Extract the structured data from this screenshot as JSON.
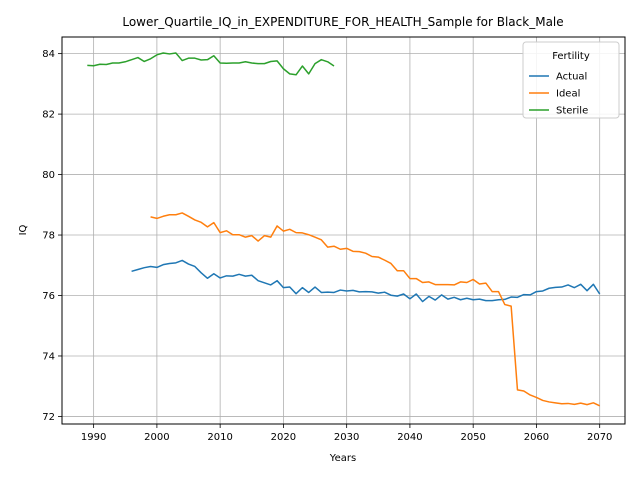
{
  "chart_data": {
    "type": "line",
    "title": "Lower_Quartile_IQ_in_EXPENDITURE_FOR_HEALTH_Sample for Black_Male",
    "xlabel": "Years",
    "ylabel": "IQ",
    "xlim": [
      1985,
      2074
    ],
    "ylim": [
      71.75,
      84.55
    ],
    "x_ticks": [
      1990,
      2000,
      2010,
      2020,
      2030,
      2040,
      2050,
      2060,
      2070
    ],
    "y_ticks": [
      72,
      74,
      76,
      78,
      80,
      82,
      84
    ],
    "grid": true,
    "legend": {
      "title": "Fertility",
      "placement": "top-right"
    },
    "series": [
      {
        "name": "Actual",
        "color": "#1f77b4",
        "x": [
          1996,
          1997,
          1998,
          1999,
          2000,
          2001,
          2002,
          2003,
          2004,
          2005,
          2006,
          2007,
          2008,
          2009,
          2010,
          2011,
          2012,
          2013,
          2014,
          2015,
          2016,
          2017,
          2018,
          2019,
          2020,
          2021,
          2022,
          2023,
          2024,
          2025,
          2026,
          2027,
          2028,
          2029,
          2030,
          2031,
          2032,
          2033,
          2034,
          2035,
          2036,
          2037,
          2038,
          2039,
          2040,
          2041,
          2042,
          2043,
          2044,
          2045,
          2046,
          2047,
          2048,
          2049,
          2050,
          2051,
          2052,
          2053,
          2054,
          2055,
          2056,
          2057,
          2058,
          2059,
          2060,
          2061,
          2062,
          2063,
          2064,
          2065,
          2066,
          2067,
          2068,
          2069,
          2070
        ],
        "y": [
          76.8,
          76.86,
          76.92,
          76.96,
          76.93,
          77.02,
          77.06,
          77.08,
          77.16,
          77.04,
          76.96,
          76.75,
          76.57,
          76.72,
          76.58,
          76.65,
          76.64,
          76.7,
          76.64,
          76.67,
          76.49,
          76.42,
          76.35,
          76.49,
          76.26,
          76.28,
          76.06,
          76.26,
          76.1,
          76.28,
          76.1,
          76.11,
          76.1,
          76.18,
          76.15,
          76.17,
          76.12,
          76.13,
          76.12,
          76.08,
          76.11,
          76.01,
          75.98,
          76.05,
          75.89,
          76.05,
          75.8,
          75.97,
          75.85,
          76.02,
          75.88,
          75.94,
          75.86,
          75.91,
          75.86,
          75.88,
          75.83,
          75.83,
          75.86,
          75.87,
          75.95,
          75.94,
          76.03,
          76.02,
          76.13,
          76.15,
          76.24,
          76.27,
          76.28,
          76.35,
          76.26,
          76.37,
          76.16,
          76.37,
          76.05
        ]
      },
      {
        "name": "Ideal",
        "color": "#ff7f0e",
        "x": [
          1999,
          2000,
          2001,
          2002,
          2003,
          2004,
          2005,
          2006,
          2007,
          2008,
          2009,
          2010,
          2011,
          2012,
          2013,
          2014,
          2015,
          2016,
          2017,
          2018,
          2019,
          2020,
          2021,
          2022,
          2023,
          2024,
          2025,
          2026,
          2027,
          2028,
          2029,
          2030,
          2031,
          2032,
          2033,
          2034,
          2035,
          2036,
          2037,
          2038,
          2039,
          2040,
          2041,
          2042,
          2043,
          2044,
          2045,
          2046,
          2047,
          2048,
          2049,
          2050,
          2051,
          2052,
          2053,
          2054,
          2055,
          2056,
          2057,
          2058,
          2059,
          2060,
          2061,
          2062,
          2063,
          2064,
          2065,
          2066,
          2067,
          2068,
          2069,
          2070
        ],
        "y": [
          78.6,
          78.55,
          78.62,
          78.67,
          78.67,
          78.73,
          78.62,
          78.5,
          78.42,
          78.27,
          78.41,
          78.08,
          78.14,
          78.01,
          78.01,
          77.93,
          77.98,
          77.8,
          77.98,
          77.93,
          78.3,
          78.13,
          78.19,
          78.08,
          78.07,
          78.01,
          77.93,
          77.84,
          77.6,
          77.63,
          77.53,
          77.56,
          77.46,
          77.45,
          77.4,
          77.29,
          77.27,
          77.17,
          77.06,
          76.82,
          76.82,
          76.56,
          76.56,
          76.43,
          76.45,
          76.36,
          76.36,
          76.36,
          76.35,
          76.45,
          76.43,
          76.53,
          76.38,
          76.41,
          76.13,
          76.13,
          75.7,
          75.65,
          72.88,
          72.84,
          72.71,
          72.63,
          72.53,
          72.48,
          72.45,
          72.42,
          72.43,
          72.4,
          72.44,
          72.39,
          72.45,
          72.35
        ]
      },
      {
        "name": "Sterile",
        "color": "#2ca02c",
        "x": [
          1989,
          1990,
          1991,
          1992,
          1993,
          1994,
          1995,
          1996,
          1997,
          1998,
          1999,
          2000,
          2001,
          2002,
          2003,
          2004,
          2005,
          2006,
          2007,
          2008,
          2009,
          2010,
          2011,
          2012,
          2013,
          2014,
          2015,
          2016,
          2017,
          2018,
          2019,
          2020,
          2021,
          2022,
          2023,
          2024,
          2025,
          2026,
          2027,
          2028
        ],
        "y": [
          83.61,
          83.6,
          83.65,
          83.64,
          83.69,
          83.69,
          83.73,
          83.8,
          83.87,
          83.74,
          83.83,
          83.96,
          84.02,
          83.99,
          84.02,
          83.77,
          83.85,
          83.85,
          83.79,
          83.8,
          83.93,
          83.69,
          83.68,
          83.69,
          83.69,
          83.73,
          83.69,
          83.67,
          83.67,
          83.74,
          83.76,
          83.5,
          83.33,
          83.3,
          83.59,
          83.33,
          83.67,
          83.8,
          83.73,
          83.59
        ]
      }
    ]
  }
}
